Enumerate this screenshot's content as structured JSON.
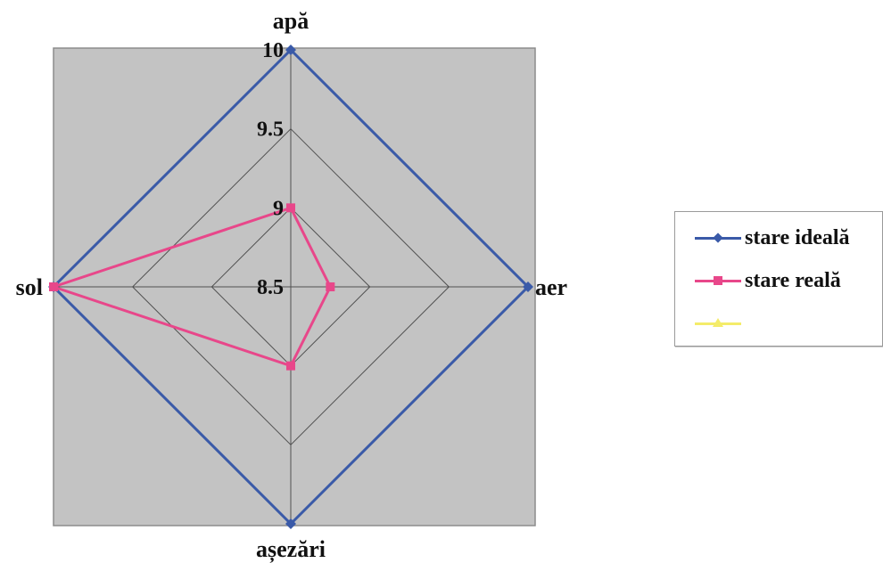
{
  "chart_data": {
    "type": "radar",
    "axes": [
      "apă",
      "aer",
      "așezări",
      "sol"
    ],
    "rmin": 8.5,
    "rmax": 10,
    "ticks": [
      8.5,
      9,
      9.5,
      10
    ],
    "tick_labels": [
      "8.5",
      "9",
      "9.5",
      "10"
    ],
    "grid": true,
    "legend_position": "right",
    "plot_background": "#c3c3c3",
    "series": [
      {
        "name": "stare ideală",
        "values": [
          10,
          10,
          10,
          10
        ],
        "color": "#3a5aa8",
        "marker": "diamond"
      },
      {
        "name": "stare reală",
        "values": [
          9,
          8.75,
          9,
          10
        ],
        "color": "#e8478a",
        "marker": "square"
      },
      {
        "name": "",
        "values": [],
        "color": "#f4ec6a",
        "marker": "triangle"
      }
    ]
  }
}
